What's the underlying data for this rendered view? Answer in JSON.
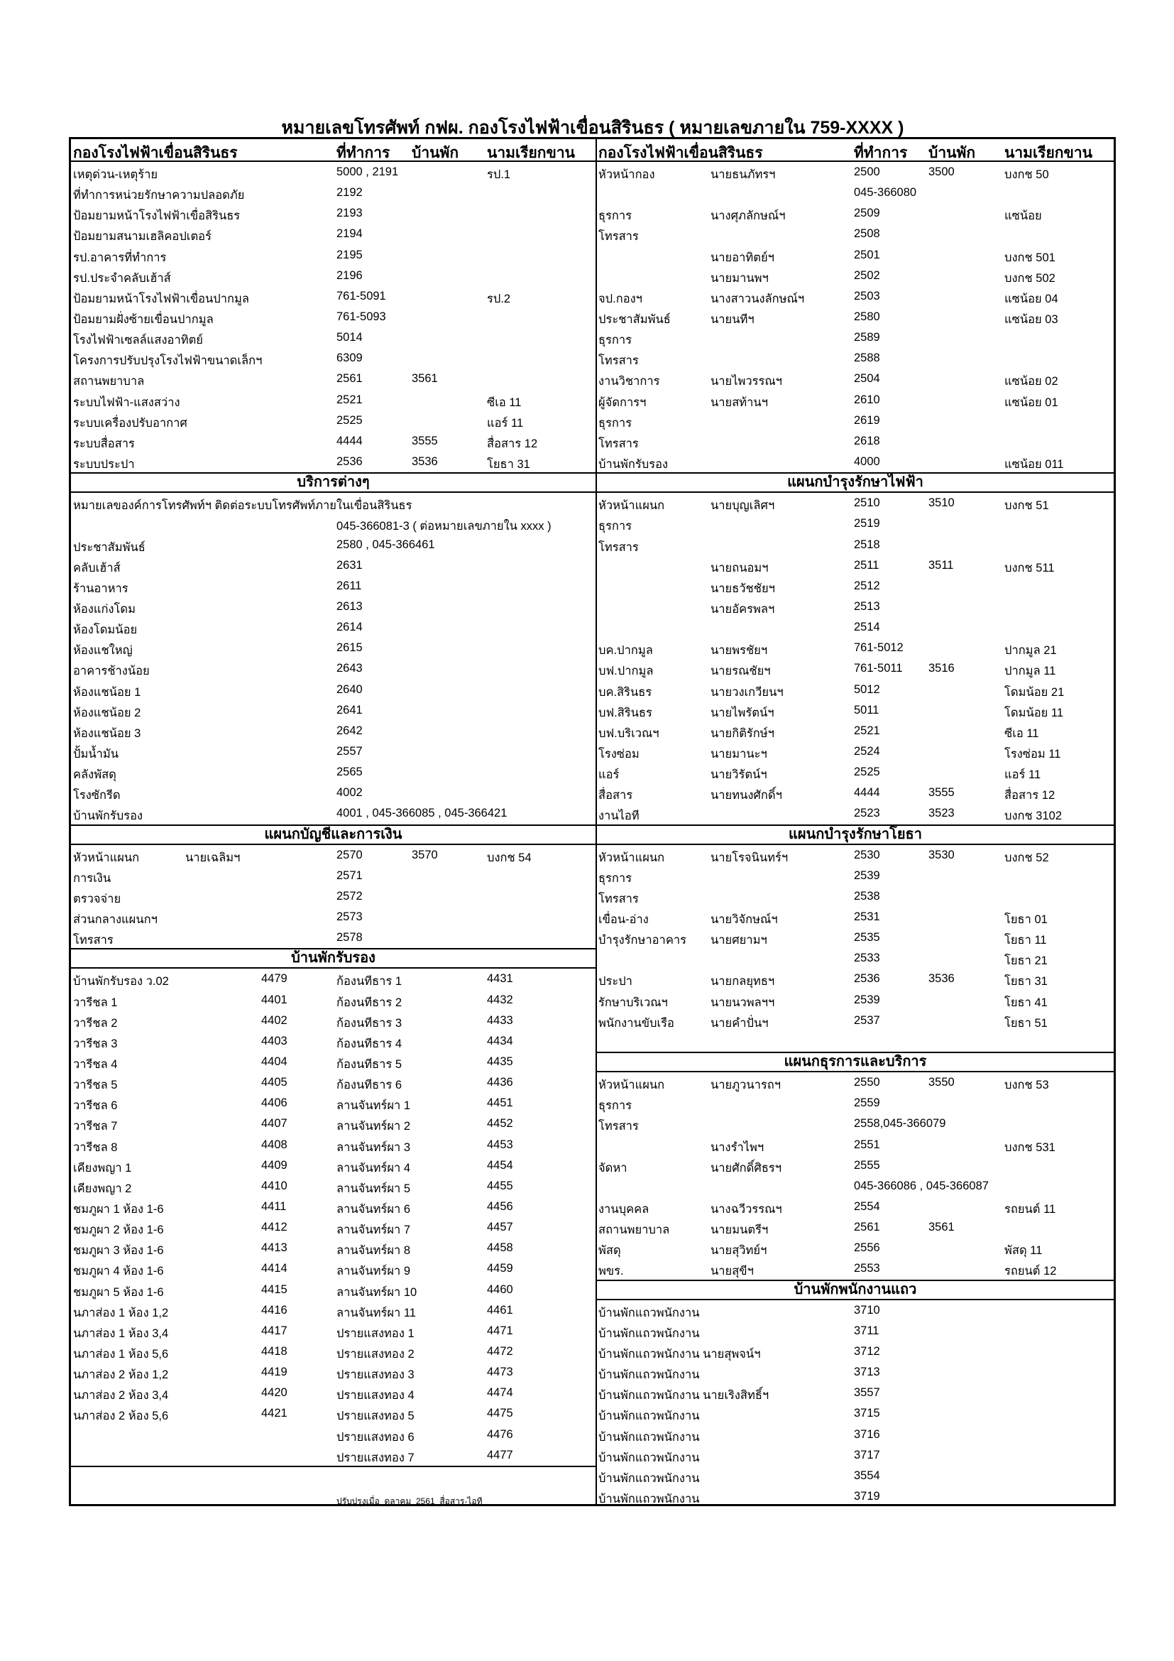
{
  "title": "หมายเลขโทรศัพท์ กฟผ. กองโรงไฟฟ้าเขื่อนสิรินธร ( หมายเลขภายใน 759-XXXX )",
  "left": {
    "header": {
      "l": "กองโรงไฟฟ้าเขื่อนสิรินธร",
      "o": "ที่ทำการ",
      "h": "บ้านพัก",
      "k": "นามเรียกขาน"
    },
    "sections": [
      {
        "title": null,
        "rows": [
          {
            "l": "เหตุด่วน-เหตุร้าย",
            "o": "5000 , 2191",
            "k": "รป.1"
          },
          {
            "l": "ที่ทำการหน่วยรักษาความปลอดภัย",
            "o": "2192"
          },
          {
            "l": "ป้อมยามหน้าโรงไฟฟ้าเขื่อสิรินธร",
            "o": "2193"
          },
          {
            "l": "ป้อมยามสนามเฮลิคอปเตอร์",
            "o": "2194"
          },
          {
            "l": "รป.อาคารที่ทำการ",
            "o": "2195"
          },
          {
            "l": "รป.ประจำคลับเฮ้าส์",
            "o": "2196"
          },
          {
            "l": "ป้อมยามหน้าโรงไฟฟ้าเขื่อนปากมูล",
            "o": "761-5091",
            "k": "รป.2"
          },
          {
            "l": "ป้อมยามฝั่งซ้ายเขื่อนปากมูล",
            "o": "761-5093"
          },
          {
            "l": "โรงไฟฟ้าเซลล์แสงอาทิตย์",
            "o": "5014"
          },
          {
            "l": "โครงการปรับปรุงโรงไฟฟ้าขนาดเล็กฯ",
            "o": "6309"
          },
          {
            "l": "สถานพยาบาล",
            "o": "2561",
            "h": "3561"
          },
          {
            "l": "ระบบไฟฟ้า-แสงสว่าง",
            "o": "2521",
            "k": "ซีเอ 11"
          },
          {
            "l": "ระบบเครื่องปรับอากาศ",
            "o": "2525",
            "k": "แอร์ 11"
          },
          {
            "l": "ระบบสื่อสาร",
            "o": "4444",
            "h": "3555",
            "k": "สื่อสาร 12"
          },
          {
            "l": "ระบบประปา",
            "o": "2536",
            "h": "3536",
            "k": "โยธา 31"
          }
        ]
      },
      {
        "title": "บริการต่างๆ",
        "rows": [
          {
            "l": "หมายเลของค์การโทรศัพท์ฯ  ติดต่อระบบโทรศัพท์ภายในเขื่อนสิรินธร"
          },
          {
            "o": "045-366081-3 ( ต่อหมายเลขภายใน xxxx )"
          },
          {
            "l": "ประชาสัมพันธ์",
            "o": "2580 , 045-366461"
          },
          {
            "l": "คลับเฮ้าส์",
            "o": "2631"
          },
          {
            "l": "ร้านอาหาร",
            "o": "2611"
          },
          {
            "l": "ห้องแก่งโดม",
            "o": "2613"
          },
          {
            "l": "ห้องโดมน้อย",
            "o": "2614"
          },
          {
            "l": "ห้องแชใหญ่",
            "o": "2615"
          },
          {
            "l": "อาคารช้างน้อย",
            "o": "2643"
          },
          {
            "l": "ห้องแชน้อย 1",
            "o": "2640"
          },
          {
            "l": "ห้องแชน้อย 2",
            "o": "2641"
          },
          {
            "l": "ห้องแชน้อย 3",
            "o": "2642"
          },
          {
            "l": "ปั้มน้ำมัน",
            "o": "2557"
          },
          {
            "l": "คลังพัสดุ",
            "o": "2565"
          },
          {
            "l": "โรงซักรีด",
            "o": "4002"
          },
          {
            "l": "บ้านพักรับรอง",
            "o": "4001 , 045-366085 , 045-366421"
          }
        ]
      },
      {
        "title": "แผนกบัญชีและการเงิน",
        "rows": [
          {
            "l": "หัวหน้าแผนก",
            "n": "นายเฉลิมฯ",
            "o": "2570",
            "h": "3570",
            "k": "บงกช 54"
          },
          {
            "l": "การเงิน",
            "o": "2571"
          },
          {
            "l": "ตรวจจ่าย",
            "o": "2572"
          },
          {
            "l": "ส่วนกลางแผนกฯ",
            "o": "2573"
          },
          {
            "l": "โทรสาร",
            "o": "2578"
          }
        ]
      },
      {
        "title": "บ้านพักรับรอง",
        "rows": [
          {
            "l": "บ้านพักรับรอง ว.02",
            "g": "4479",
            "o": "ก้องนทีธาร 1",
            "k": "4431"
          },
          {
            "l": "วารีชล 1",
            "g": "4401",
            "o": "ก้องนทีธาร 2",
            "k": "4432"
          },
          {
            "l": "วารีชล 2",
            "g": "4402",
            "o": "ก้องนทีธาร 3",
            "k": "4433"
          },
          {
            "l": "วารีชล 3",
            "g": "4403",
            "o": "ก้องนทีธาร 4",
            "k": "4434"
          },
          {
            "l": "วารีชล 4",
            "g": "4404",
            "o": "ก้องนทีธาร 5",
            "k": "4435"
          },
          {
            "l": "วารีชล 5",
            "g": "4405",
            "o": "ก้องนทีธาร 6",
            "k": "4436"
          },
          {
            "l": "วารีชล 6",
            "g": "4406",
            "o": "ลานจันทร์ผา 1",
            "k": "4451"
          },
          {
            "l": "วารีชล 7",
            "g": "4407",
            "o": "ลานจันทร์ผา 2",
            "k": "4452"
          },
          {
            "l": "วารีชล 8",
            "g": "4408",
            "o": "ลานจันทร์ผา 3",
            "k": "4453"
          },
          {
            "l": "เคียงพญา 1",
            "g": "4409",
            "o": "ลานจันทร์ผา 4",
            "k": "4454"
          },
          {
            "l": "เคียงพญา 2",
            "g": "4410",
            "o": "ลานจันทร์ผา 5",
            "k": "4455"
          },
          {
            "l": "ชมภูผา 1 ห้อง 1-6",
            "g": "4411",
            "o": "ลานจันทร์ผา 6",
            "k": "4456"
          },
          {
            "l": "ชมภูผา 2 ห้อง 1-6",
            "g": "4412",
            "o": "ลานจันทร์ผา 7",
            "k": "4457"
          },
          {
            "l": "ชมภูผา 3 ห้อง 1-6",
            "g": "4413",
            "o": "ลานจันทร์ผา 8",
            "k": "4458"
          },
          {
            "l": "ชมภูผา 4 ห้อง 1-6",
            "g": "4414",
            "o": "ลานจันทร์ผา 9",
            "k": "4459"
          },
          {
            "l": "ชมภูผา 5 ห้อง 1-6",
            "g": "4415",
            "o": "ลานจันทร์ผา 10",
            "k": "4460"
          },
          {
            "l": "นภาส่อง 1 ห้อง 1,2",
            "g": "4416",
            "o": "ลานจันทร์ผา 11",
            "k": "4461"
          },
          {
            "l": "นภาส่อง 1 ห้อง 3,4",
            "g": "4417",
            "o": "ปรายแสงทอง 1",
            "k": "4471"
          },
          {
            "l": "นภาส่อง 1 ห้อง 5,6",
            "g": "4418",
            "o": "ปรายแสงทอง 2",
            "k": "4472"
          },
          {
            "l": "นภาส่อง 2 ห้อง 1,2",
            "g": "4419",
            "o": "ปรายแสงทอง 3",
            "k": "4473"
          },
          {
            "l": "นภาส่อง 2 ห้อง 3,4",
            "g": "4420",
            "o": "ปรายแสงทอง 4",
            "k": "4474"
          },
          {
            "l": "นภาส่อง 2 ห้อง 5,6",
            "g": "4421",
            "o": "ปรายแสงทอง 5",
            "k": "4475"
          },
          {
            "o": "ปรายแสงทอง 6",
            "k": "4476"
          },
          {
            "o": "ปรายแสงทอง 7",
            "k": "4477"
          }
        ]
      },
      {
        "title": null,
        "break": true,
        "rows": [
          {},
          {
            "f": "ปรับปรุงเมื่อ  ดุลาคม  2561  สื่อสาร-ไอที"
          }
        ]
      }
    ]
  },
  "right": {
    "header": {
      "l": "กองโรงไฟฟ้าเขื่อนสิรินธร",
      "o": "ที่ทำการ",
      "h": "บ้านพัก",
      "k": "นามเรียกขาน"
    },
    "sections": [
      {
        "title": null,
        "rows": [
          {
            "l": "หัวหน้ากอง",
            "n": "นายธนภัทรฯ",
            "o": "2500",
            "h": "3500",
            "k": "บงกช 50"
          },
          {
            "o": "045-366080"
          },
          {
            "l": "ธุรการ",
            "n": "นางศุภลักษณ์ฯ",
            "o": "2509",
            "k": "แซน้อย"
          },
          {
            "l": "โทรสาร",
            "o": "2508"
          },
          {
            "n": "นายอาทิตย์ฯ",
            "o": "2501",
            "k": "บงกช 501"
          },
          {
            "n": "นายมานพฯ",
            "o": "2502",
            "k": "บงกช 502"
          },
          {
            "l": "จป.กองฯ",
            "n": "นางสาวนงลักษณ์ฯ",
            "o": "2503",
            "k": "แซน้อย 04"
          },
          {
            "l": "ประชาสัมพันธ์",
            "n": "นายนทีฯ",
            "o": "2580",
            "k": "แซน้อย 03"
          },
          {
            "l": "ธุรการ",
            "o": "2589"
          },
          {
            "l": "โทรสาร",
            "o": "2588"
          },
          {
            "l": "งานวิชาการ",
            "n": "นายไพวรรณฯ",
            "o": "2504",
            "k": "แซน้อย 02"
          },
          {
            "l": "ผู้จัดการฯ",
            "n": "นายสท้านฯ",
            "o": "2610",
            "k": "แซน้อย 01"
          },
          {
            "l": "ธุรการ",
            "o": "2619"
          },
          {
            "l": "โทรสาร",
            "o": "2618"
          },
          {
            "l": "บ้านพักรับรอง",
            "o": "4000",
            "k": "แซน้อย 011"
          }
        ]
      },
      {
        "title": "แผนกบำรุงรักษาไฟฟ้า",
        "rows": [
          {
            "l": "หัวหน้าแผนก",
            "n": "นายบุญเลิศฯ",
            "o": "2510",
            "h": "3510",
            "k": "บงกช 51"
          },
          {
            "l": "ธุรการ",
            "o": "2519"
          },
          {
            "l": "โทรสาร",
            "o": "2518"
          },
          {
            "n": "นายถนอมฯ",
            "o": "2511",
            "h": "3511",
            "k": "บงกช 511"
          },
          {
            "n": "นายธวัชชัยฯ",
            "o": "2512"
          },
          {
            "n": "นายอัครพลฯ",
            "o": "2513"
          },
          {
            "o": "2514"
          },
          {
            "l": "บค.ปากมูล",
            "n": "นายพรชัยฯ",
            "o": "761-5012",
            "k": "ปากมูล 21"
          },
          {
            "l": "บฟ.ปากมูล",
            "n": "นายรณชัยฯ",
            "o": "761-5011",
            "h": "3516",
            "k": "ปากมูล 11"
          },
          {
            "l": "บค.สิรินธร",
            "n": "นายวงเกวียนฯ",
            "o": "5012",
            "k": "โดมน้อย 21"
          },
          {
            "l": "บฟ.สิรินธร",
            "n": "นายไพรัตน์ฯ",
            "o": "5011",
            "k": "โดมน้อย 11"
          },
          {
            "l": "บฟ.บริเวณฯ",
            "n": "นายกิติรักษ์ฯ",
            "o": "2521",
            "k": "ซีเอ 11"
          },
          {
            "l": "โรงซ่อม",
            "n": "นายมานะฯ",
            "o": "2524",
            "k": "โรงซ่อม 11"
          },
          {
            "l": "แอร์",
            "n": "นายวิรัตน์ฯ",
            "o": "2525",
            "k": "แอร์ 11"
          },
          {
            "l": "สื่อสาร",
            "n": "นายทนงศักดิ์ฯ",
            "o": "4444",
            "h": "3555",
            "k": "สื่อสาร 12"
          },
          {
            "l": "งานไอที",
            "o": "2523",
            "h": "3523",
            "k": "บงกช 3102"
          }
        ]
      },
      {
        "title": "แผนกบำรุงรักษาโยธา",
        "rows": [
          {
            "l": "หัวหน้าแผนก",
            "n": "นายโรจนินทร์ฯ",
            "o": "2530",
            "h": "3530",
            "k": "บงกช 52"
          },
          {
            "l": "ธุรการ",
            "o": "2539"
          },
          {
            "l": "โทรสาร",
            "o": "2538"
          },
          {
            "l": "เขื่อน-อ่าง",
            "n": "นายวิจักษณ์ฯ",
            "o": "2531",
            "k": "โยธา 01"
          },
          {
            "l": "บำรุงรักษาอาคาร",
            "n": "นายศยามฯ",
            "o": "2535",
            "k": "โยธา 11"
          },
          {
            "o": "2533",
            "k": "โยธา 21"
          },
          {
            "l": "ประปา",
            "n": "นายกลยุทธฯ",
            "o": "2536",
            "h": "3536",
            "k": "โยธา 31"
          },
          {
            "l": "รักษาบริเวณฯ",
            "n": "นายนวพลฯฯ",
            "o": "2539",
            "k": "โยธา 41"
          },
          {
            "l": "พนักงานขับเรือ",
            "n": "นายคำปั่นฯ",
            "o": "2537",
            "k": "โยธา 51"
          },
          {}
        ]
      },
      {
        "title": "แผนกธุรการและบริการ",
        "rows": [
          {
            "l": "หัวหน้าแผนก",
            "n": "นายภูวนารถฯ",
            "o": "2550",
            "h": "3550",
            "k": "บงกช 53"
          },
          {
            "l": "ธุรการ",
            "o": "2559"
          },
          {
            "l": "โทรสาร",
            "o": "2558,045-366079"
          },
          {
            "n": "นางรำไพฯ",
            "o": "2551",
            "k": "บงกช 531"
          },
          {
            "l": "จัดหา",
            "n": "นายศักดิ์ศิธรฯ",
            "o": "2555"
          },
          {
            "o": "045-366086 , 045-366087"
          },
          {
            "l": "งานบุคคล",
            "n": "นางฉวีวรรณฯ",
            "o": "2554",
            "k": "รถยนต์ 11"
          },
          {
            "l": "สถานพยาบาล",
            "n": "นายมนตรีฯ",
            "o": "2561",
            "h": "3561"
          },
          {
            "l": "พัสดุ",
            "n": "นายสุวิทย์ฯ",
            "o": "2556",
            "k": "พัสดุ 11"
          },
          {
            "l": "พขร.",
            "n": "นายสุขีฯ",
            "o": "2553",
            "k": "รถยนต์ 12"
          }
        ]
      },
      {
        "title": "บ้านพักพนักงานแถว",
        "rows": [
          {
            "l": "บ้านพักแถวพนักงาน",
            "o": "3710"
          },
          {
            "l": "บ้านพักแถวพนักงาน",
            "o": "3711"
          },
          {
            "l": "บ้านพักแถวพนักงาน นายสุพจน์ฯ",
            "o": "3712"
          },
          {
            "l": "บ้านพักแถวพนักงาน",
            "o": "3713"
          },
          {
            "l": "บ้านพักแถวพนักงาน นายเริงสิทธิ์ฯ",
            "o": "3557"
          },
          {
            "l": "บ้านพักแถวพนักงาน",
            "o": "3715"
          },
          {
            "l": "บ้านพักแถวพนักงาน",
            "o": "3716"
          },
          {
            "l": "บ้านพักแถวพนักงาน",
            "o": "3717"
          },
          {
            "l": "บ้านพักแถวพนักงาน",
            "o": "3554"
          },
          {
            "l": "บ้านพักแถวพนักงาน",
            "o": "3719"
          }
        ]
      }
    ]
  }
}
